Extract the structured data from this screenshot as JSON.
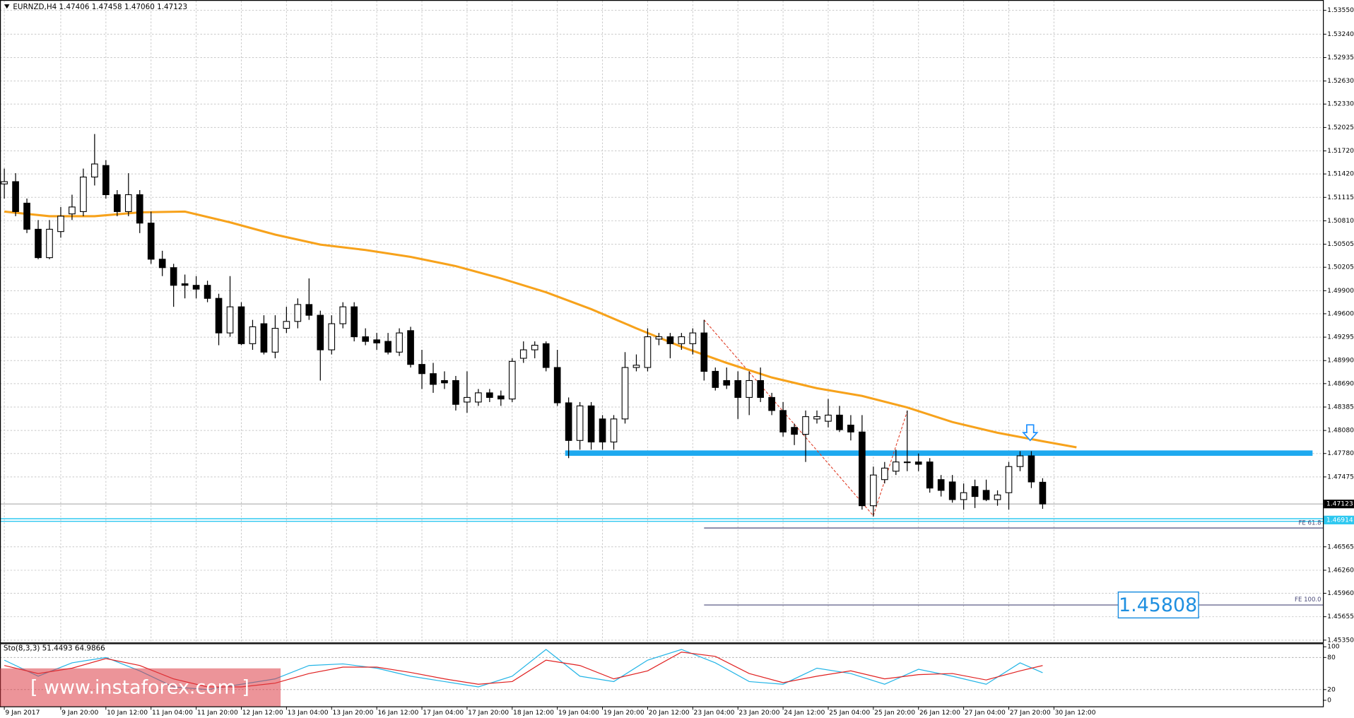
{
  "chart_data": {
    "type": "candlestick",
    "title": "EURNZD,H4 1.47406 1.47458 1.47060 1.47123",
    "categories": [
      "9 Jan 2017",
      null,
      null,
      null,
      null,
      "9 Jan 20:00",
      null,
      null,
      null,
      "10 Jan 12:00",
      null,
      null,
      null,
      "11 Jan 04:00",
      null,
      null,
      null,
      "11 Jan 20:00",
      null,
      null,
      null,
      "12 Jan 12:00",
      null,
      null,
      null,
      "13 Jan 04:00",
      null,
      null,
      null,
      "13 Jan 20:00",
      null,
      null,
      null,
      "16 Jan 12:00",
      null,
      null,
      null,
      "17 Jan 04:00",
      null,
      null,
      null,
      "17 Jan 20:00",
      null,
      null,
      null,
      "18 Jan 12:00",
      null,
      null,
      null,
      "19 Jan 04:00",
      null,
      null,
      null,
      "19 Jan 20:00",
      null,
      null,
      null,
      "20 Jan 12:00",
      null,
      null,
      null,
      "23 Jan 04:00",
      null,
      null,
      null,
      "23 Jan 20:00",
      null,
      null,
      null,
      "24 Jan 12:00",
      null,
      null,
      null,
      "25 Jan 04:00",
      null,
      null,
      null,
      "25 Jan 20:00",
      null,
      null,
      null,
      "26 Jan 12:00",
      null,
      null,
      null,
      "27 Jan 04:00",
      null,
      null,
      null,
      "27 Jan 20:00",
      null,
      null,
      null,
      "30 Jan 12:00"
    ],
    "ohlc": [
      [
        1.5129,
        1.5149,
        1.511,
        1.5132
      ],
      [
        1.5132,
        1.5143,
        1.5087,
        1.5093
      ],
      [
        1.5104,
        1.511,
        1.5065,
        1.507
      ],
      [
        1.507,
        1.5082,
        1.5031,
        1.5033
      ],
      [
        1.5033,
        1.5082,
        1.5031,
        1.507
      ],
      [
        1.5067,
        1.5099,
        1.5059,
        1.5087
      ],
      [
        1.509,
        1.5115,
        1.5082,
        1.5099
      ],
      [
        1.5093,
        1.5149,
        1.5087,
        1.5138
      ],
      [
        1.5138,
        1.5194,
        1.5127,
        1.5155
      ],
      [
        1.5153,
        1.516,
        1.511,
        1.5115
      ],
      [
        1.5115,
        1.5121,
        1.5087,
        1.5093
      ],
      [
        1.5093,
        1.5143,
        1.5087,
        1.5115
      ],
      [
        1.5115,
        1.5121,
        1.5065,
        1.5078
      ],
      [
        1.5078,
        1.5093,
        1.5025,
        1.5031
      ],
      [
        1.5031,
        1.5042,
        1.5009,
        1.502
      ],
      [
        1.502,
        1.5025,
        1.4969,
        1.4997
      ],
      [
        1.4999,
        1.5011,
        1.498,
        1.4997
      ],
      [
        1.4997,
        1.5009,
        1.498,
        1.4992
      ],
      [
        1.4997,
        1.5003,
        1.4975,
        1.498
      ],
      [
        1.498,
        1.4986,
        1.4919,
        1.4935
      ],
      [
        1.4935,
        1.5009,
        1.493,
        1.4969
      ],
      [
        1.4969,
        1.4975,
        1.4919,
        1.4921
      ],
      [
        1.4921,
        1.4952,
        1.4913,
        1.4943
      ],
      [
        1.4947,
        1.4958,
        1.4907,
        1.491
      ],
      [
        1.491,
        1.4958,
        1.4902,
        1.4941
      ],
      [
        1.4941,
        1.4969,
        1.4935,
        1.495
      ],
      [
        1.495,
        1.498,
        1.4941,
        1.4972
      ],
      [
        1.4972,
        1.5006,
        1.4952,
        1.4958
      ],
      [
        1.4958,
        1.4964,
        1.4873,
        1.4913
      ],
      [
        1.4913,
        1.4958,
        1.4907,
        1.4947
      ],
      [
        1.4947,
        1.4975,
        1.4941,
        1.4969
      ],
      [
        1.4969,
        1.4975,
        1.4924,
        1.493
      ],
      [
        1.493,
        1.4941,
        1.4919,
        1.4924
      ],
      [
        1.4926,
        1.4935,
        1.4913,
        1.4922
      ],
      [
        1.4924,
        1.4935,
        1.4907,
        1.491
      ],
      [
        1.491,
        1.4941,
        1.4905,
        1.4935
      ],
      [
        1.4938,
        1.4943,
        1.489,
        1.4894
      ],
      [
        1.4894,
        1.4913,
        1.4862,
        1.4882
      ],
      [
        1.4882,
        1.4896,
        1.4857,
        1.4868
      ],
      [
        1.4873,
        1.4885,
        1.4862,
        1.487
      ],
      [
        1.4873,
        1.4879,
        1.4834,
        1.4842
      ],
      [
        1.4845,
        1.4885,
        1.4831,
        1.4851
      ],
      [
        1.4845,
        1.4862,
        1.484,
        1.4857
      ],
      [
        1.4857,
        1.4862,
        1.4845,
        1.4851
      ],
      [
        1.4853,
        1.486,
        1.484,
        1.4849
      ],
      [
        1.4849,
        1.4902,
        1.4845,
        1.4898
      ],
      [
        1.4902,
        1.4924,
        1.4896,
        1.4913
      ],
      [
        1.4913,
        1.4924,
        1.4902,
        1.4919
      ],
      [
        1.4921,
        1.4924,
        1.4885,
        1.489
      ],
      [
        1.489,
        1.4913,
        1.484,
        1.4844
      ],
      [
        1.4844,
        1.4851,
        1.4772,
        1.4795
      ],
      [
        1.4795,
        1.4845,
        1.4783,
        1.484
      ],
      [
        1.484,
        1.4845,
        1.4783,
        1.4793
      ],
      [
        1.4823,
        1.4828,
        1.4783,
        1.4793
      ],
      [
        1.4793,
        1.4828,
        1.4783,
        1.4823
      ],
      [
        1.4823,
        1.491,
        1.4817,
        1.489
      ],
      [
        1.489,
        1.4907,
        1.4885,
        1.4893
      ],
      [
        1.489,
        1.4941,
        1.4885,
        1.493
      ],
      [
        1.4927,
        1.4935,
        1.4919,
        1.493
      ],
      [
        1.493,
        1.4935,
        1.4902,
        1.4921
      ],
      [
        1.4921,
        1.4935,
        1.4913,
        1.493
      ],
      [
        1.4921,
        1.4941,
        1.4907,
        1.4935
      ],
      [
        1.4935,
        1.4952,
        1.4873,
        1.4885
      ],
      [
        1.4885,
        1.489,
        1.486,
        1.4864
      ],
      [
        1.4873,
        1.489,
        1.4862,
        1.4867
      ],
      [
        1.4873,
        1.4885,
        1.4823,
        1.4851
      ],
      [
        1.4851,
        1.4885,
        1.4828,
        1.4873
      ],
      [
        1.4873,
        1.489,
        1.4845,
        1.4851
      ],
      [
        1.4851,
        1.4857,
        1.4828,
        1.4834
      ],
      [
        1.4834,
        1.4845,
        1.48,
        1.4806
      ],
      [
        1.4812,
        1.4817,
        1.4789,
        1.4803
      ],
      [
        1.4803,
        1.4834,
        1.4767,
        1.4826
      ],
      [
        1.4823,
        1.4834,
        1.4817,
        1.4826
      ],
      [
        1.482,
        1.4849,
        1.4812,
        1.4828
      ],
      [
        1.4828,
        1.484,
        1.4806,
        1.4809
      ],
      [
        1.4815,
        1.4828,
        1.4795,
        1.4806
      ],
      [
        1.4806,
        1.4828,
        1.4705,
        1.471
      ],
      [
        1.471,
        1.4761,
        1.4696,
        1.475
      ],
      [
        1.4744,
        1.4767,
        1.4739,
        1.4759
      ],
      [
        1.4755,
        1.4783,
        1.475,
        1.4767
      ],
      [
        1.4767,
        1.4834,
        1.4755,
        1.4767
      ],
      [
        1.4767,
        1.4778,
        1.4755,
        1.4764
      ],
      [
        1.4767,
        1.4772,
        1.4727,
        1.4733
      ],
      [
        1.4744,
        1.475,
        1.4722,
        1.473
      ],
      [
        1.4741,
        1.475,
        1.4714,
        1.4718
      ],
      [
        1.4718,
        1.4739,
        1.4705,
        1.4727
      ],
      [
        1.4735,
        1.4744,
        1.4707,
        1.4722
      ],
      [
        1.473,
        1.4744,
        1.4716,
        1.4718
      ],
      [
        1.4718,
        1.473,
        1.471,
        1.4724
      ],
      [
        1.4727,
        1.4767,
        1.4705,
        1.4761
      ],
      [
        1.4761,
        1.4781,
        1.4755,
        1.4775
      ],
      [
        1.4775,
        1.4781,
        1.4733,
        1.4741
      ],
      [
        1.47406,
        1.47458,
        1.4706,
        1.47123
      ],
      null
    ],
    "ylim": [
      1.4532,
      1.5364
    ],
    "yticks": [
      {
        "value": 1.5355,
        "label": "1.53550"
      },
      {
        "value": 1.5324,
        "label": "1.53240"
      },
      {
        "value": 1.52935,
        "label": "1.52935"
      },
      {
        "value": 1.5263,
        "label": "1.52630"
      },
      {
        "value": 1.5233,
        "label": "1.52330"
      },
      {
        "value": 1.52025,
        "label": "1.52025"
      },
      {
        "value": 1.5172,
        "label": "1.51720"
      },
      {
        "value": 1.5142,
        "label": "1.51420"
      },
      {
        "value": 1.51115,
        "label": "1.51115"
      },
      {
        "value": 1.5081,
        "label": "1.50810"
      },
      {
        "value": 1.50505,
        "label": "1.50505"
      },
      {
        "value": 1.50205,
        "label": "1.50205"
      },
      {
        "value": 1.499,
        "label": "1.49900"
      },
      {
        "value": 1.496,
        "label": "1.49600"
      },
      {
        "value": 1.49295,
        "label": "1.49295"
      },
      {
        "value": 1.4899,
        "label": "1.48990"
      },
      {
        "value": 1.4869,
        "label": "1.48690"
      },
      {
        "value": 1.48385,
        "label": "1.48385"
      },
      {
        "value": 1.4808,
        "label": "1.48080"
      },
      {
        "value": 1.4778,
        "label": "1.47780"
      },
      {
        "value": 1.47475,
        "label": "1.47475"
      },
      {
        "value": 1.46565,
        "label": "1.46565"
      },
      {
        "value": 1.4626,
        "label": "1.46260"
      },
      {
        "value": 1.4596,
        "label": "1.45960"
      },
      {
        "value": 1.45655,
        "label": "1.45655"
      },
      {
        "value": 1.4535,
        "label": "1.45350"
      }
    ],
    "grid": true,
    "bull_color": "#ffffff",
    "bear_color": "#000000",
    "ma": {
      "color": "#f7a21b",
      "x": [
        0,
        4,
        8,
        12,
        16,
        20,
        24,
        28,
        32,
        36,
        40,
        44,
        48,
        52,
        56,
        60,
        64,
        68,
        72,
        76,
        80,
        84,
        88,
        92,
        95
      ],
      "values": [
        1.5093,
        1.5087,
        1.5087,
        1.5092,
        1.5093,
        1.5079,
        1.5063,
        1.505,
        1.5043,
        1.5034,
        1.5022,
        1.5006,
        1.4988,
        1.4966,
        1.4941,
        1.4917,
        1.4896,
        1.4877,
        1.4863,
        1.4853,
        1.4838,
        1.4819,
        1.4805,
        1.4794,
        1.4786
      ]
    },
    "zone": {
      "color": "#1ea9ef",
      "start": 50,
      "values": [
        1.4775,
        1.4782
      ]
    },
    "current_price": {
      "value": 1.47123,
      "label": "1.47123"
    },
    "level_line": {
      "value": 1.46914,
      "label": "1.46914",
      "color": "#2ec8f0"
    },
    "fibo": {
      "color": "#e0402a",
      "x": [
        62,
        77,
        80
      ],
      "values": [
        1.4952,
        1.4697,
        1.4833
      ]
    },
    "fe_levels": [
      {
        "value": 1.4681,
        "label": "FE 61.8",
        "start": 62
      },
      {
        "value": 1.45808,
        "label": "FE 100.0",
        "start": 62
      }
    ],
    "stochastic": {
      "title": "Sto(8,3,3) 51.4493 64.9866",
      "ylim": [
        0,
        100
      ],
      "yticks": [
        0,
        20,
        80,
        100
      ],
      "x": [
        0,
        3,
        6,
        9,
        12,
        15,
        18,
        21,
        24,
        27,
        30,
        33,
        36,
        39,
        42,
        45,
        48,
        51,
        54,
        57,
        60,
        63,
        66,
        69,
        72,
        75,
        78,
        81,
        84,
        87,
        90,
        92
      ],
      "series": [
        {
          "color": "#22b4e6",
          "values": [
            75,
            45,
            70,
            80,
            55,
            25,
            20,
            30,
            40,
            65,
            68,
            60,
            45,
            35,
            25,
            45,
            95,
            45,
            35,
            75,
            95,
            70,
            35,
            30,
            60,
            50,
            30,
            58,
            45,
            30,
            70,
            51.4493
          ]
        },
        {
          "color": "#e02020",
          "values": [
            65,
            50,
            60,
            78,
            65,
            40,
            25,
            25,
            32,
            50,
            62,
            62,
            52,
            40,
            30,
            35,
            75,
            65,
            40,
            55,
            90,
            82,
            50,
            33,
            45,
            55,
            40,
            48,
            50,
            38,
            55,
            64.9866
          ]
        }
      ]
    },
    "watermark": "[ www.instaforex.com ]"
  }
}
